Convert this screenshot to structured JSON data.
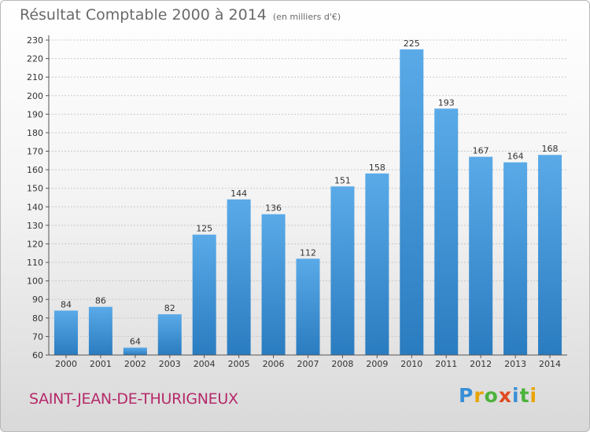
{
  "header": {
    "title": "Résultat Comptable 2000 à 2014",
    "subtitle": "(en milliers d'€)"
  },
  "footer": {
    "commune": "SAINT-JEAN-DE-THURIGNEUX",
    "logo_text": "Proxiti"
  },
  "colors": {
    "bar_top": "#5aaae8",
    "bar_bottom": "#2a7cc0",
    "commune_text": "#b52a6a"
  },
  "chart_data": {
    "type": "bar",
    "title": "Résultat Comptable 2000 à 2014",
    "subtitle": "(en milliers d'€)",
    "xlabel": "",
    "ylabel": "",
    "categories": [
      "2000",
      "2001",
      "2002",
      "2003",
      "2004",
      "2005",
      "2006",
      "2007",
      "2008",
      "2009",
      "2010",
      "2011",
      "2012",
      "2013",
      "2014"
    ],
    "values": [
      84,
      86,
      64,
      82,
      125,
      144,
      136,
      112,
      151,
      158,
      225,
      193,
      167,
      164,
      168
    ],
    "ylim": [
      60,
      230
    ],
    "yticks": [
      60,
      70,
      80,
      90,
      100,
      110,
      120,
      130,
      140,
      150,
      160,
      170,
      180,
      190,
      200,
      210,
      220,
      230
    ],
    "grid": true,
    "legend": "none"
  }
}
